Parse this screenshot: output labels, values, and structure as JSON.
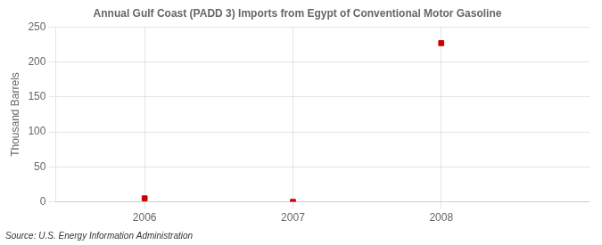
{
  "chart_data": {
    "type": "scatter",
    "title": "Annual Gulf Coast (PADD 3) Imports from Egypt of Conventional Motor Gasoline",
    "ylabel": "Thousand Barrels",
    "annotation": "Source: U.S. Energy Information Administration",
    "x": [
      2006,
      2007,
      2008
    ],
    "values": [
      5,
      0,
      227
    ],
    "color": "#cc0000",
    "marker": "square",
    "xlim": [
      2005.4,
      2009.0
    ],
    "xticks": [
      2006,
      2007,
      2008
    ],
    "ylim": [
      0,
      250
    ],
    "yticks": [
      0,
      50,
      100,
      150,
      200,
      250
    ],
    "grid": true
  }
}
